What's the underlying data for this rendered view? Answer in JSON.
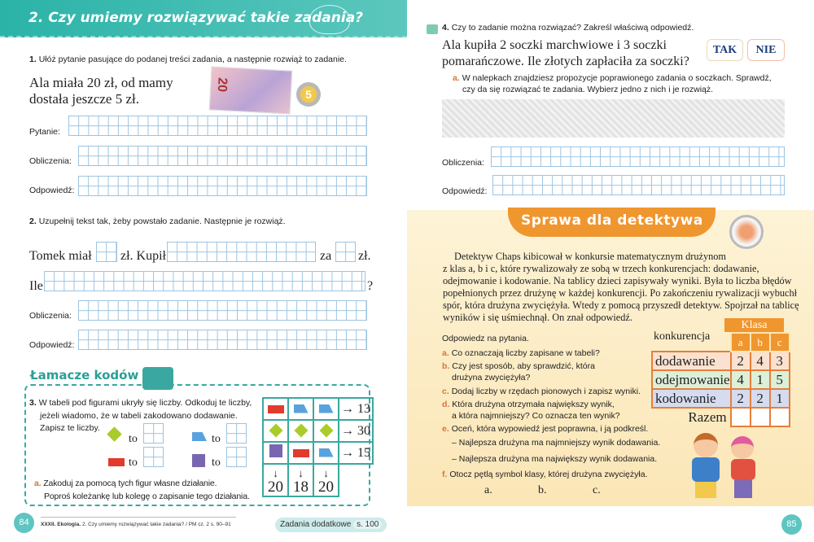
{
  "left": {
    "header_title": "2. Czy umiemy rozwiązywać takie zadania?",
    "task1": {
      "num": "1.",
      "text": "Ułóż pytanie pasujące do podanej treści zadania, a następnie rozwiąż to zadanie.",
      "story1": "Ala miała 20 zł, od mamy",
      "story2": "dostała jeszcze 5 zł.",
      "banknote": "20",
      "coin": "5",
      "labels": [
        "Pytanie:",
        "Obliczenia:",
        "Odpowiedź:"
      ]
    },
    "task2": {
      "num": "2.",
      "text": "Uzupełnij tekst tak, żeby powstało zadanie. Następnie je rozwiąż.",
      "t1": "Tomek miał",
      "t2": "zł. Kupił",
      "t3": "za",
      "t4": "zł.",
      "t5": "Ile",
      "t6": "?",
      "labels": [
        "Obliczenia:",
        "Odpowiedź:"
      ]
    },
    "codes": {
      "title": "Łamacze kodów",
      "num": "3.",
      "text1": "W tabeli pod figurami ukryły się liczby. Odkoduj te liczby,",
      "text2": "jeżeli wiadomo, że w tabeli zakodowano dodawanie.",
      "text3": "Zapisz te liczby.",
      "to": "to",
      "sub_letter": "a.",
      "sub1": "Zakoduj za pomocą tych figur własne działanie.",
      "sub2": "Poproś koleżankę lub kolegę o zapisanie tego działania.",
      "row_sums": [
        "→ 13",
        "→ 30",
        "→ 15"
      ],
      "col_arrow": "↓",
      "col_sums": [
        "20",
        "18",
        "20"
      ]
    },
    "footer": {
      "page": "84",
      "chapter": "XXXII. Ekologia.",
      "ref": "2. Czy umiemy rozwiązywać takie zadania? / PM cz. 2 s. 90–91",
      "extra": "Zadania dodatkowe",
      "extra_page": "s. 100"
    }
  },
  "right": {
    "task4": {
      "num": "4.",
      "text": "Czy to zadanie można rozwiązać? Zakreśl właściwą odpowiedź.",
      "story1": "Ala kupiła 2 soczki marchwiowe i 3 soczki",
      "story2": "pomarańczowe. Ile złotych zapłaciła za soczki?",
      "yes": "TAK",
      "no": "NIE",
      "sub_letter": "a.",
      "sub1": "W nalepkach znajdziesz propozycje poprawionego zadania o soczkach. Sprawdź,",
      "sub2": "czy da się rozwiązać te zadania. Wybierz jedno z nich i je rozwiąż.",
      "labels": [
        "Obliczenia:",
        "Odpowiedź:"
      ]
    },
    "detective": {
      "title": "Sprawa dla detektywa",
      "paragraph": [
        "Detektyw Chaps kibicował w konkursie matematycznym drużynom",
        "z klas a, b i c, które rywalizowały ze sobą w trzech konkurencjach: dodawanie,",
        "odejmowanie i kodowanie. Na tablicy dzieci zapisywały wyniki. Była to liczba błędów",
        "popełnionych przez drużynę w każdej konkurencji. Po zakończeniu rywalizacji wybuchł",
        "spór, która drużyna zwyciężyła. Wtedy z pomocą przyszedł detektyw. Spojrzał na tablicę",
        "wyników i się uśmiechnął. On znał odpowiedź."
      ],
      "intro": "Odpowiedz na pytania.",
      "questions": [
        {
          "l": "a.",
          "t": "Co oznaczają liczby zapisane w tabeli?"
        },
        {
          "l": "b.",
          "t": "Czy jest sposób, aby sprawdzić, która",
          "t2": "drużyna zwyciężyła?"
        },
        {
          "l": "c.",
          "t": "Dodaj liczby w rzędach pionowych i zapisz wyniki."
        },
        {
          "l": "d.",
          "t": "Która drużyna otrzymała największy wynik,",
          "t2": "a która najmniejszy? Co oznacza ten wynik?"
        },
        {
          "l": "e.",
          "t": "Oceń, która wypowiedź jest poprawna, i ją podkreśl."
        },
        {
          "l": "f.",
          "t": "Otocz pętlą symbol klasy, której drużyna zwyciężyła."
        }
      ],
      "options": [
        "– Najlepsza drużyna ma najmniejszy wynik dodawania.",
        "– Najlepsza drużyna ma największy wynik dodawania."
      ],
      "classes": [
        "a.",
        "b.",
        "c."
      ],
      "table": {
        "group": "Klasa",
        "row_header": "konkurencja",
        "cols": [
          "a",
          "b",
          "c"
        ],
        "rows": [
          {
            "name": "dodawanie",
            "v": [
              "2",
              "4",
              "3"
            ]
          },
          {
            "name": "odejmowanie",
            "v": [
              "4",
              "1",
              "5"
            ]
          },
          {
            "name": "kodowanie",
            "v": [
              "2",
              "2",
              "1"
            ]
          }
        ],
        "total": "Razem"
      }
    },
    "footer": {
      "page": "85"
    }
  },
  "colors": {
    "teal": "#3bbcb2",
    "orange": "#f0962e",
    "red": "#e23b2e",
    "blue": "#5aa2dd",
    "green": "#a8cc2a",
    "purple": "#7a66b0"
  }
}
